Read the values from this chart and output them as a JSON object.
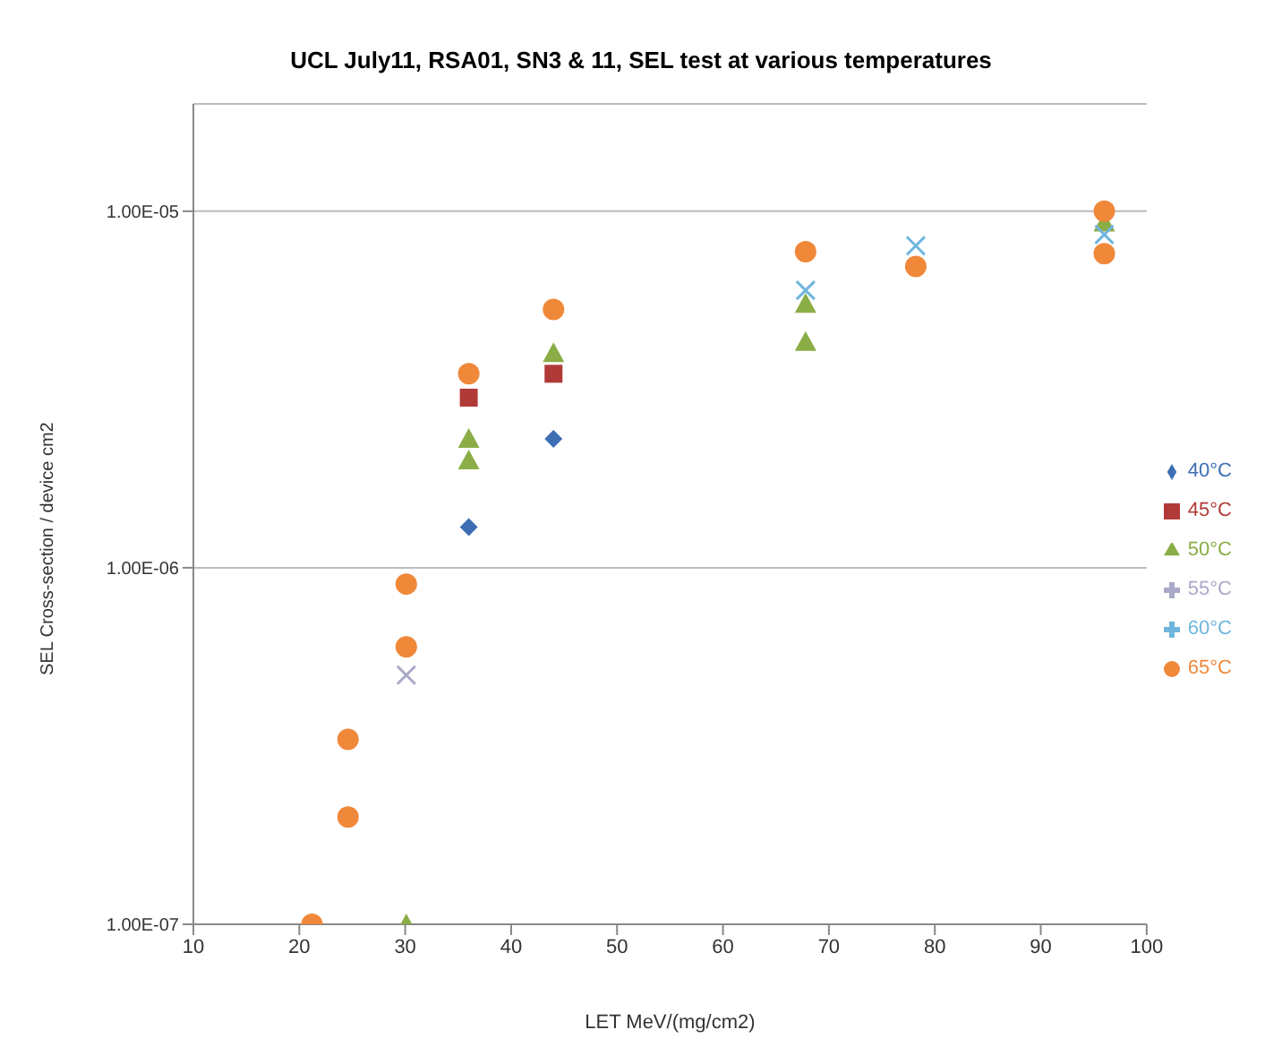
{
  "chart_data": {
    "type": "scatter",
    "title": "UCL July11, RSA01, SN3 & 11, SEL test at various temperatures",
    "xlabel": "LET   MeV/(mg/cm2)",
    "ylabel": "SEL Cross-section / device    cm2",
    "log": "y",
    "grid": "y",
    "legend": "right",
    "xlim": [
      10,
      100
    ],
    "xticks": [
      10,
      20,
      30,
      40,
      50,
      60,
      70,
      80,
      90,
      100
    ],
    "ylim": [
      1e-07,
      2e-05
    ],
    "yticks": [
      {
        "value": 1e-07,
        "label": "1.00E-07"
      },
      {
        "value": 1e-06,
        "label": "1.00E-06"
      },
      {
        "value": 1e-05,
        "label": "1.00E-05"
      }
    ],
    "series": [
      {
        "name": "40°C",
        "color": "#3d6eb4",
        "marker": "diamond",
        "x": [
          36,
          44
        ],
        "values": [
          1.3e-06,
          2.3e-06
        ]
      },
      {
        "name": "45°C",
        "color": "#b03a37",
        "marker": "square",
        "x": [
          36,
          44
        ],
        "values": [
          3e-06,
          3.5e-06
        ]
      },
      {
        "name": "50°C",
        "color": "#8aad46",
        "marker": "triangle",
        "x": [
          30.1,
          36,
          36,
          44,
          67.8,
          67.8,
          96
        ],
        "values": [
          1e-07,
          2.3e-06,
          2e-06,
          4e-06,
          5.5e-06,
          4.3e-06,
          9.3e-06
        ]
      },
      {
        "name": "55°C",
        "color": "#a9a9c8",
        "marker": "cross",
        "x": [
          30.1
        ],
        "values": [
          5e-07
        ]
      },
      {
        "name": "60°C",
        "color": "#6fb6de",
        "marker": "cross",
        "x": [
          67.8,
          78.2,
          96
        ],
        "values": [
          6e-06,
          8e-06,
          8.6e-06
        ]
      },
      {
        "name": "65°C",
        "color": "#f0883a",
        "marker": "circle",
        "x": [
          21.2,
          24.6,
          24.6,
          30.1,
          30.1,
          36,
          44,
          67.8,
          78.2,
          96,
          96
        ],
        "values": [
          1e-07,
          2e-07,
          3.3e-07,
          6e-07,
          9e-07,
          3.5e-06,
          5.3e-06,
          7.7e-06,
          7e-06,
          1e-05,
          7.6e-06
        ]
      }
    ]
  }
}
